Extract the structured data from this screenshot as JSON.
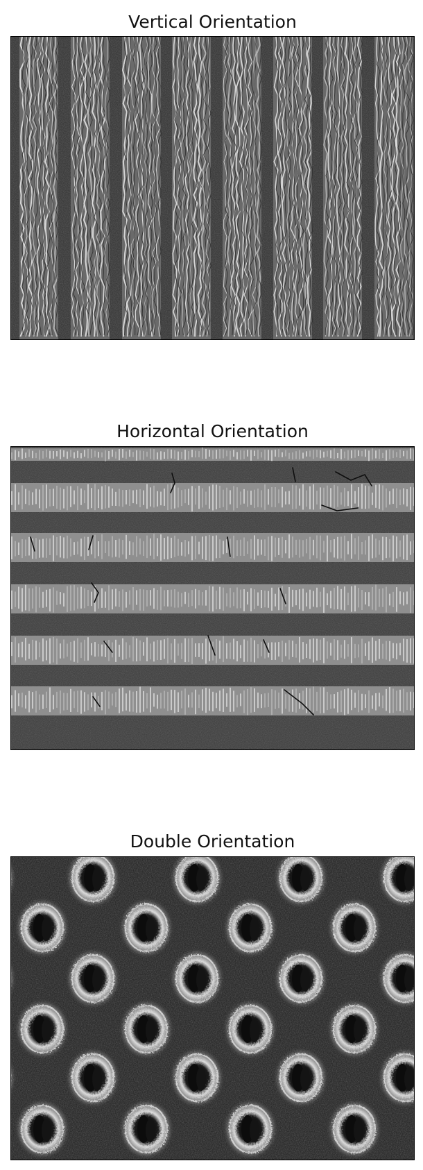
{
  "panels": [
    {
      "title": "Vertical Orientation",
      "pattern": "vertical-stripes"
    },
    {
      "title": "Horizontal Orientation",
      "pattern": "horizontal-stripes"
    },
    {
      "title": "Double Orientation",
      "pattern": "dimple-array"
    }
  ]
}
